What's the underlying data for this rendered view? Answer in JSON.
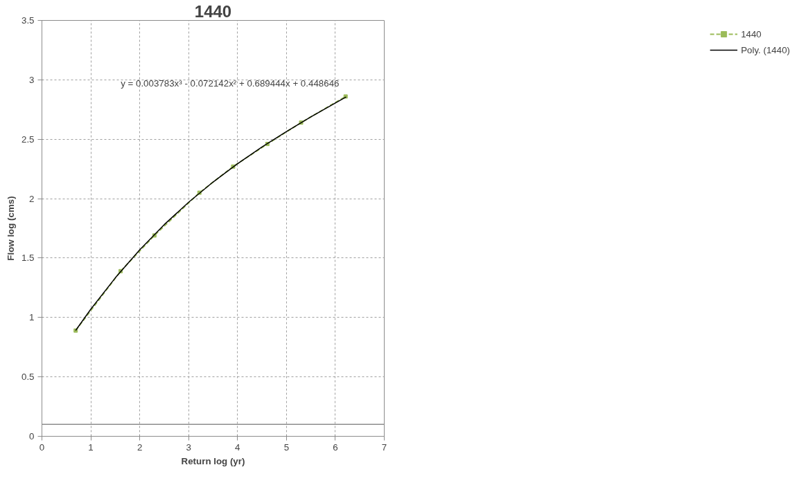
{
  "chart_data": {
    "type": "line",
    "title": "1440",
    "xlabel": "Return log (yr)",
    "ylabel": "Flow log (cms)",
    "xlim": [
      0,
      7
    ],
    "xticks": [
      0,
      1,
      2,
      3,
      4,
      5,
      6,
      7
    ],
    "ylim": [
      0,
      3.5
    ],
    "yticks": [
      0,
      0.5,
      1,
      1.5,
      2,
      2.5,
      3,
      3.5
    ],
    "grid": true,
    "legend": "right",
    "series": [
      {
        "name": "1440",
        "color": "#9bbb59",
        "line_style": "dashed",
        "marker": "square",
        "x": [
          0.69,
          1.61,
          2.3,
          3.22,
          3.91,
          4.61,
          5.3,
          6.21
        ],
        "values": [
          0.89,
          1.39,
          1.69,
          2.05,
          2.27,
          2.46,
          2.64,
          2.86
        ]
      },
      {
        "name": "Poly. (1440)",
        "color": "#000000",
        "line_style": "solid",
        "marker": "none",
        "x": [
          0.69,
          1,
          1.5,
          2,
          2.5,
          3,
          3.5,
          4,
          4.5,
          5,
          5.5,
          6,
          6.22
        ],
        "values": [
          0.891,
          1.07,
          1.333,
          1.569,
          1.781,
          1.97,
          2.14,
          2.294,
          2.435,
          2.565,
          2.688,
          2.805,
          2.856
        ]
      }
    ],
    "ref_lines": [
      {
        "axis": "y",
        "value": 0.1,
        "color": "#8c8c8c",
        "line_style": "solid"
      }
    ],
    "annotations": [
      "y = 0.003783x³ - 0.072142x² + 0.689444x + 0.448646"
    ]
  }
}
